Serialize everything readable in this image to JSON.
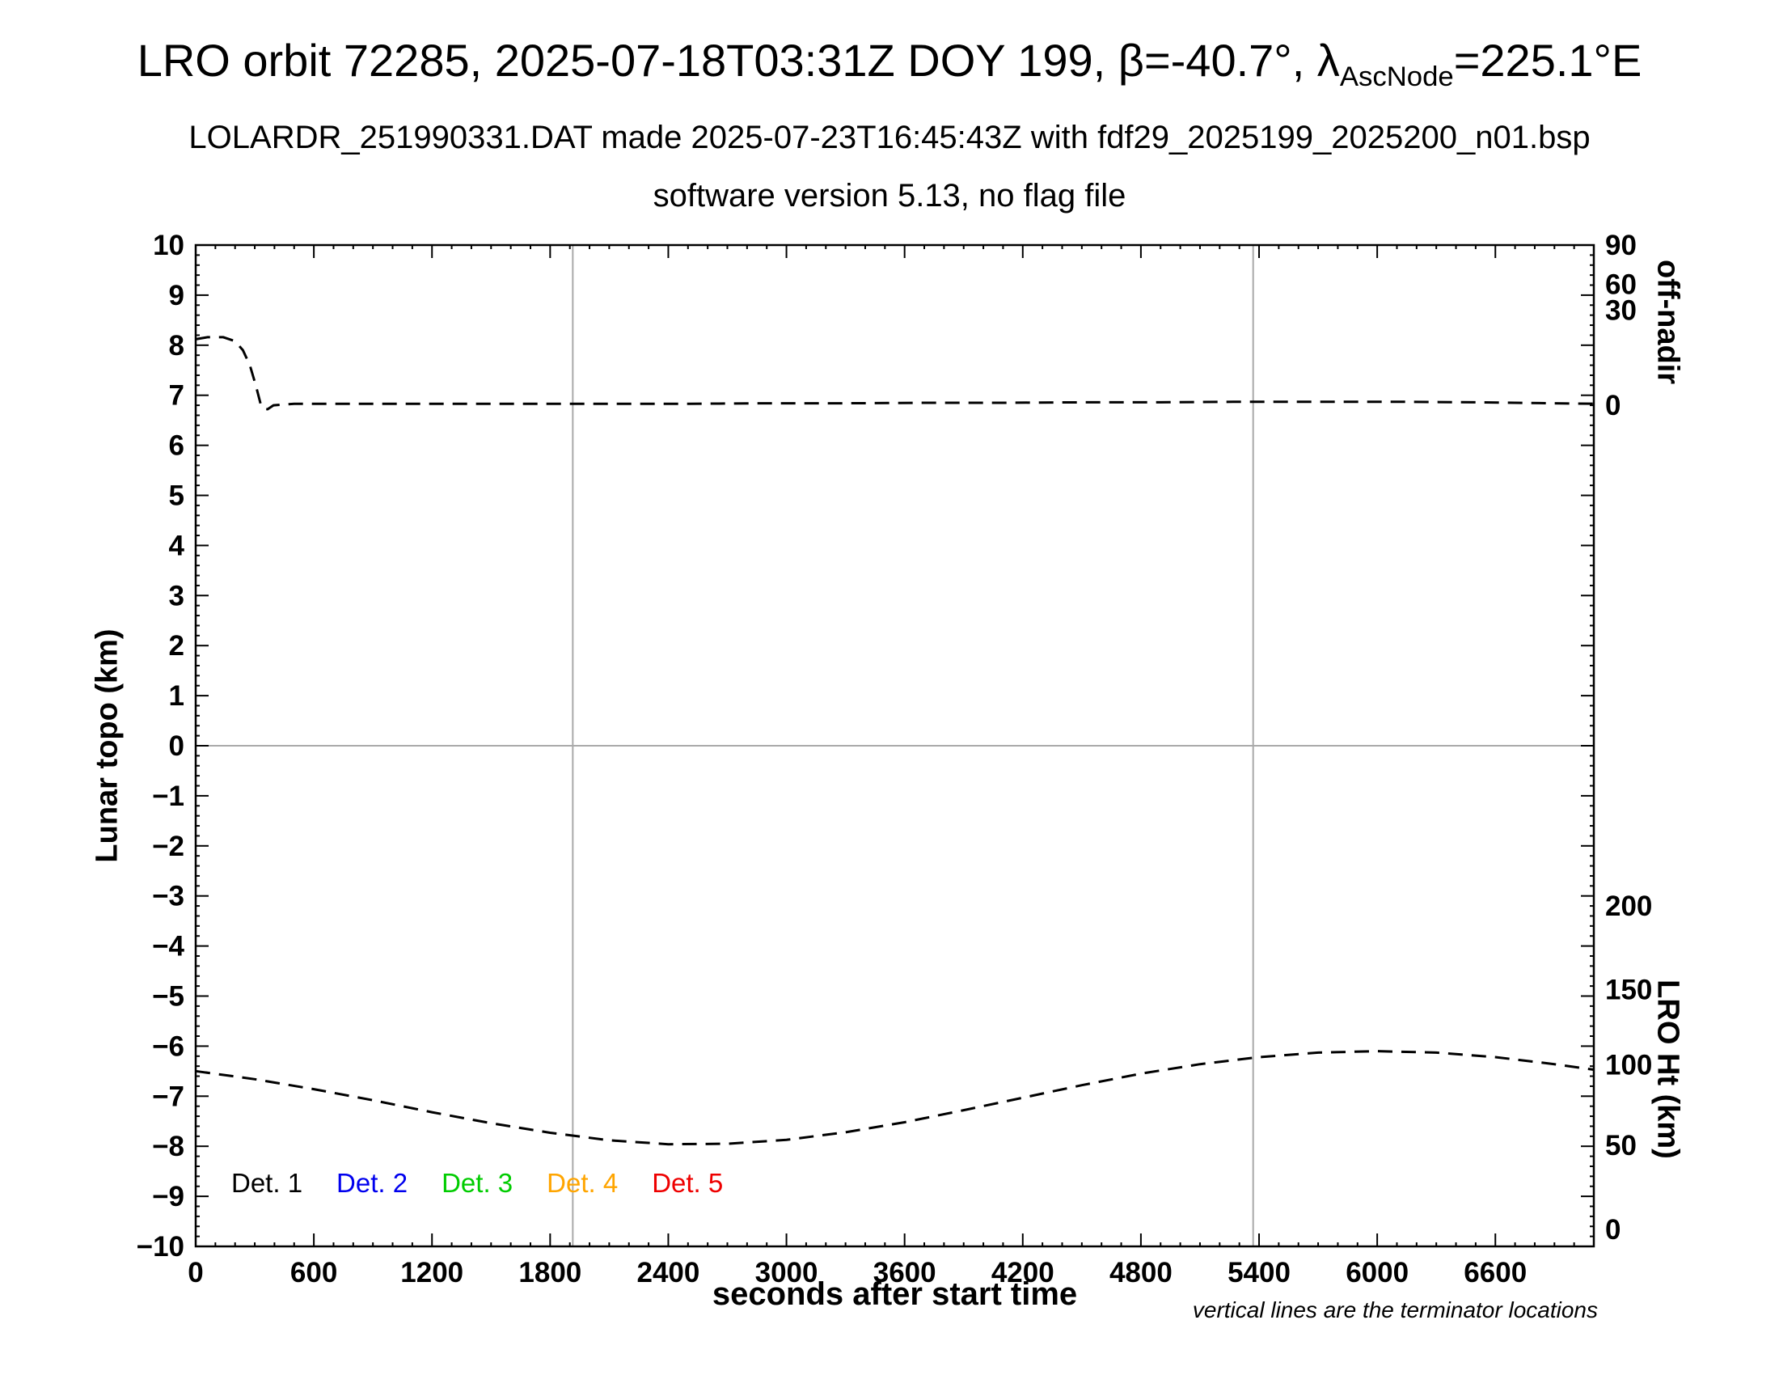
{
  "header": {
    "title_part1": "LRO orbit 72285, 2025-07-18T03:31Z DOY 199, β=-40.7°, λ",
    "title_sub": "AscNode",
    "title_part2": "=225.1°E",
    "subtitle1": "LOLARDR_251990331.DAT made 2025-07-23T16:45:43Z with fdf29_2025199_2025200_n01.bsp",
    "subtitle2": "software version 5.13, no flag file"
  },
  "axes": {
    "left_title": "Lunar topo (km)",
    "bottom_title": "seconds after start time",
    "right_top_title": "off-nadir",
    "right_bottom_title": "LRO Ht (km)"
  },
  "note": "vertical lines are the terminator locations",
  "legend": {
    "items": [
      {
        "label": "Det. 1",
        "color": "#000000"
      },
      {
        "label": "Det. 2",
        "color": "#0000ee"
      },
      {
        "label": "Det. 3",
        "color": "#00cc00"
      },
      {
        "label": "Det. 4",
        "color": "#ffa500"
      },
      {
        "label": "Det. 5",
        "color": "#ee0000"
      }
    ]
  },
  "chart_data": {
    "type": "line",
    "title": "LRO orbit 72285, 2025-07-18T03:31Z DOY 199, beta=-40.7 deg, lambda_AscNode=225.1 deg E",
    "x_axis": {
      "label": "seconds after start time",
      "range": [
        0,
        7100
      ],
      "major_tick_step": 600,
      "minor_tick_step": 100,
      "ticks": [
        {
          "t": 0,
          "label": "0"
        },
        {
          "t": 600,
          "label": "600"
        },
        {
          "t": 1200,
          "label": "1200"
        },
        {
          "t": 1800,
          "label": "1800"
        },
        {
          "t": 2400,
          "label": "2400"
        },
        {
          "t": 3000,
          "label": "3000"
        },
        {
          "t": 3600,
          "label": "3600"
        },
        {
          "t": 4200,
          "label": "4200"
        },
        {
          "t": 4800,
          "label": "4800"
        },
        {
          "t": 5400,
          "label": "5400"
        },
        {
          "t": 6000,
          "label": "6000"
        },
        {
          "t": 6600,
          "label": "6600"
        }
      ]
    },
    "y_left_axis": {
      "label": "Lunar topo (km)",
      "range": [
        -10,
        10
      ],
      "major_tick_step": 1,
      "minor_tick_step": 0.2,
      "ticks": [
        {
          "v": 10,
          "label": "10"
        },
        {
          "v": 9,
          "label": "9"
        },
        {
          "v": 8,
          "label": "8"
        },
        {
          "v": 7,
          "label": "7"
        },
        {
          "v": 6,
          "label": "6"
        },
        {
          "v": 5,
          "label": "5"
        },
        {
          "v": 4,
          "label": "4"
        },
        {
          "v": 3,
          "label": "3"
        },
        {
          "v": 2,
          "label": "2"
        },
        {
          "v": 1,
          "label": "1"
        },
        {
          "v": 0,
          "label": "0"
        },
        {
          "v": -1,
          "label": "−1"
        },
        {
          "v": -2,
          "label": "−2"
        },
        {
          "v": -3,
          "label": "−3"
        },
        {
          "v": -4,
          "label": "−4"
        },
        {
          "v": -5,
          "label": "−5"
        },
        {
          "v": -6,
          "label": "−6"
        },
        {
          "v": -7,
          "label": "−7"
        },
        {
          "v": -8,
          "label": "−8"
        },
        {
          "v": -9,
          "label": "−9"
        },
        {
          "v": -10,
          "label": "−10"
        }
      ]
    },
    "y_right_top_axis": {
      "label": "off-nadir",
      "units": "deg",
      "scale_note": "nonlinear; v gives tick position in left-axis units",
      "ticks": [
        {
          "v": 10.0,
          "label": "90"
        },
        {
          "v": 9.22,
          "label": "60"
        },
        {
          "v": 8.7,
          "label": "30"
        },
        {
          "v": 6.8,
          "label": "0"
        }
      ]
    },
    "y_right_bottom_axis": {
      "label": "LRO Ht (km)",
      "units": "km",
      "scale_note": "linear; v gives tick position in left-axis units",
      "ticks": [
        {
          "v": -3.2,
          "label": "200"
        },
        {
          "v": -4.87,
          "label": "150"
        },
        {
          "v": -6.37,
          "label": "100"
        },
        {
          "v": -7.98,
          "label": "50"
        },
        {
          "v": -9.66,
          "label": "0"
        }
      ]
    },
    "reference_lines": {
      "horizontal_v": [
        0
      ],
      "terminator_x": [
        1915,
        5370
      ]
    },
    "series": [
      {
        "name": "off-nadir angle",
        "style": "dashed",
        "color": "#000000",
        "points_units": "x: seconds after start, y: left-axis (Lunar topo km) plotting units",
        "points": [
          [
            0,
            8.12
          ],
          [
            60,
            8.16
          ],
          [
            140,
            8.16
          ],
          [
            200,
            8.08
          ],
          [
            240,
            7.9
          ],
          [
            275,
            7.6
          ],
          [
            305,
            7.2
          ],
          [
            330,
            6.82
          ],
          [
            345,
            6.73
          ],
          [
            365,
            6.72
          ],
          [
            395,
            6.8
          ],
          [
            500,
            6.83
          ],
          [
            900,
            6.83
          ],
          [
            1300,
            6.83
          ],
          [
            1700,
            6.83
          ],
          [
            2100,
            6.83
          ],
          [
            2500,
            6.83
          ],
          [
            2900,
            6.84
          ],
          [
            3300,
            6.84
          ],
          [
            3700,
            6.85
          ],
          [
            4100,
            6.85
          ],
          [
            4500,
            6.86
          ],
          [
            4900,
            6.86
          ],
          [
            5300,
            6.87
          ],
          [
            5700,
            6.87
          ],
          [
            6100,
            6.87
          ],
          [
            6500,
            6.86
          ],
          [
            6900,
            6.84
          ],
          [
            7100,
            6.83
          ]
        ]
      },
      {
        "name": "LRO height",
        "style": "dashed",
        "color": "#000000",
        "points_units": "x: seconds after start, y: left-axis (Lunar topo km) plotting units",
        "points": [
          [
            0,
            -6.5
          ],
          [
            300,
            -6.66
          ],
          [
            600,
            -6.86
          ],
          [
            900,
            -7.08
          ],
          [
            1200,
            -7.32
          ],
          [
            1500,
            -7.54
          ],
          [
            1800,
            -7.73
          ],
          [
            2100,
            -7.88
          ],
          [
            2400,
            -7.96
          ],
          [
            2700,
            -7.95
          ],
          [
            3000,
            -7.87
          ],
          [
            3300,
            -7.72
          ],
          [
            3600,
            -7.52
          ],
          [
            3900,
            -7.28
          ],
          [
            4200,
            -7.03
          ],
          [
            4500,
            -6.78
          ],
          [
            4800,
            -6.55
          ],
          [
            5100,
            -6.36
          ],
          [
            5400,
            -6.22
          ],
          [
            5700,
            -6.13
          ],
          [
            6000,
            -6.1
          ],
          [
            6300,
            -6.13
          ],
          [
            6600,
            -6.22
          ],
          [
            6900,
            -6.36
          ],
          [
            7100,
            -6.47
          ]
        ]
      }
    ]
  }
}
